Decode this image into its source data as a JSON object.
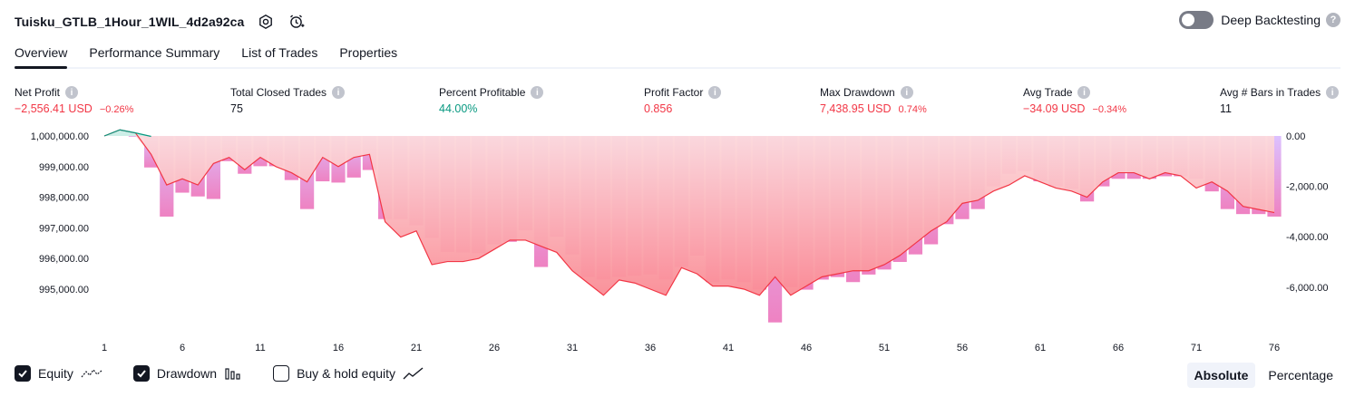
{
  "header": {
    "title": "Tuisku_GTLB_1Hour_1WIL_4d2a92ca",
    "deep_backtesting_label": "Deep Backtesting",
    "help": "?"
  },
  "tabs": [
    {
      "label": "Overview"
    },
    {
      "label": "Performance Summary"
    },
    {
      "label": "List of Trades"
    },
    {
      "label": "Properties"
    }
  ],
  "metrics": {
    "info": "i",
    "net_profit": {
      "label": "Net Profit",
      "value": "−2,556.41 USD",
      "pct": "−0.26%"
    },
    "total_closed_trades": {
      "label": "Total Closed Trades",
      "value": "75"
    },
    "percent_profitable": {
      "label": "Percent Profitable",
      "value": "44.00%"
    },
    "profit_factor": {
      "label": "Profit Factor",
      "value": "0.856"
    },
    "max_drawdown": {
      "label": "Max Drawdown",
      "value": "7,438.95 USD",
      "pct": "0.74%"
    },
    "avg_trade": {
      "label": "Avg Trade",
      "value": "−34.09 USD",
      "pct": "−0.34%"
    },
    "avg_bars": {
      "label": "Avg # Bars in Trades",
      "value": "11"
    }
  },
  "colors": {
    "profit": "#089981",
    "loss": "#f23645",
    "drawdown_bar": "#d9b7ff",
    "equity_line": "#f23645"
  },
  "chart_data": {
    "type": "bar",
    "left_axis": {
      "ticks": [
        1000000,
        999000,
        998000,
        997000,
        996000,
        995000
      ],
      "tick_labels": [
        "1,000,000.00",
        "999,000.00",
        "998,000.00",
        "997,000.00",
        "996,000.00",
        "995,000.00"
      ],
      "range": [
        994000,
        1000400
      ]
    },
    "right_axis": {
      "ticks": [
        0,
        -2000,
        -4000,
        -6000
      ],
      "tick_labels": [
        "0.00",
        "-2,000.00",
        "-4,000.00",
        "-6,000.00"
      ],
      "range": [
        -7500,
        0
      ]
    },
    "x_ticks": [
      1,
      6,
      11,
      16,
      21,
      26,
      31,
      36,
      41,
      46,
      51,
      56,
      61,
      66,
      71,
      76
    ],
    "x_tick_labels": [
      "1",
      "6",
      "11",
      "16",
      "21",
      "26",
      "31",
      "36",
      "41",
      "46",
      "51",
      "56",
      "61",
      "66",
      "71",
      "76"
    ],
    "x_range": [
      1,
      76
    ],
    "series": [
      {
        "name": "Equity",
        "values": [
          1000000,
          1000200,
          1000100,
          999400,
          998400,
          998600,
          998400,
          999100,
          999300,
          998900,
          999300,
          999000,
          998800,
          998500,
          999300,
          999000,
          999300,
          999400,
          997200,
          996700,
          996900,
          995800,
          995900,
          995900,
          996000,
          996300,
          996600,
          996600,
          996400,
          996200,
          995600,
          995200,
          994800,
          995300,
          995200,
          995000,
          994800,
          995700,
          995500,
          995100,
          995100,
          995000,
          994800,
          995400,
          994800,
          995100,
          995400,
          995500,
          995600,
          995600,
          995800,
          996100,
          996500,
          996900,
          997200,
          997800,
          997900,
          998200,
          998400,
          998700,
          998500,
          998300,
          998200,
          998000,
          998500,
          998800,
          998800,
          998600,
          998800,
          998700,
          998300,
          998500,
          998200,
          997700,
          997600,
          997500
        ]
      },
      {
        "name": "Drawdown",
        "values": [
          0,
          0,
          -30,
          -1250,
          -3200,
          -2250,
          -2400,
          -2500,
          -1000,
          -1500,
          -1200,
          -1200,
          -1750,
          -2900,
          -1800,
          -1850,
          -1650,
          -1350,
          -3300,
          -3300,
          -3550,
          -4050,
          -4600,
          -4620,
          -4650,
          -4300,
          -4200,
          -3750,
          -5200,
          -4000,
          -4700,
          -5600,
          -5700,
          -5600,
          -5550,
          -5500,
          -5700,
          -5200,
          -4750,
          -5800,
          -5700,
          -5800,
          -6100,
          -7400,
          -6000,
          -6100,
          -5700,
          -5600,
          -5800,
          -5500,
          -5300,
          -5000,
          -4700,
          -4300,
          -3500,
          -3300,
          -2900,
          -2000,
          -1500,
          -1400,
          -1800,
          -2000,
          -2100,
          -2600,
          -2000,
          -1700,
          -1700,
          -1700,
          -1600,
          -1600,
          -1700,
          -2200,
          -2900,
          -3100,
          -3100,
          -3200
        ]
      }
    ]
  },
  "legend": {
    "equity": "Equity",
    "drawdown": "Drawdown",
    "buy_hold": "Buy & hold equity"
  },
  "mode": {
    "absolute": "Absolute",
    "percentage": "Percentage"
  }
}
